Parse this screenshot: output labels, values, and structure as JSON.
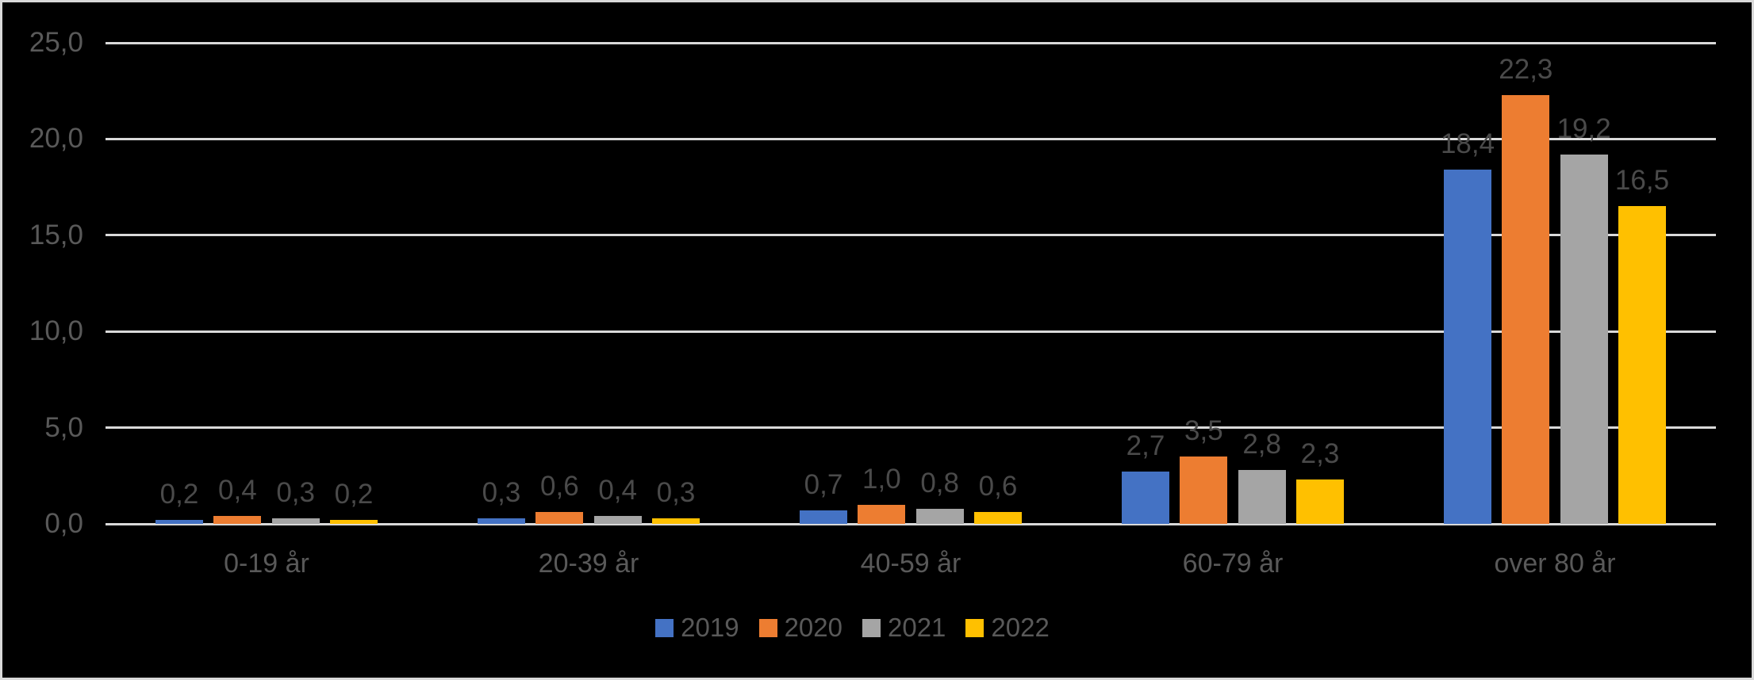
{
  "colors": {
    "background": "#000000",
    "frame_border": "#d9d9d9",
    "gridline": "#d9d9d9",
    "axis_text": "#595959",
    "data_label_text": "#4a4a4a"
  },
  "chart_data": {
    "type": "bar",
    "title": "",
    "xlabel": "",
    "ylabel": "",
    "grid": true,
    "legend_position": "bottom",
    "decimal_separator": ",",
    "categories": [
      "0-19 år",
      "20-39 år",
      "40-59 år",
      "60-79 år",
      "over 80 år"
    ],
    "series": [
      {
        "name": "2019",
        "color": "#4472C4",
        "values": [
          0.2,
          0.3,
          0.7,
          2.7,
          18.4
        ],
        "labels": [
          "0,2",
          "0,3",
          "0,7",
          "2,7",
          "18,4"
        ]
      },
      {
        "name": "2020",
        "color": "#ED7D31",
        "values": [
          0.4,
          0.6,
          1.0,
          3.5,
          22.3
        ],
        "labels": [
          "0,4",
          "0,6",
          "1,0",
          "3,5",
          "22,3"
        ]
      },
      {
        "name": "2021",
        "color": "#A5A5A5",
        "values": [
          0.3,
          0.4,
          0.8,
          2.8,
          19.2
        ],
        "labels": [
          "0,3",
          "0,4",
          "0,8",
          "2,8",
          "19,2"
        ]
      },
      {
        "name": "2022",
        "color": "#FFC000",
        "values": [
          0.2,
          0.3,
          0.6,
          2.3,
          16.5
        ],
        "labels": [
          "0,2",
          "0,3",
          "0,6",
          "2,3",
          "16,5"
        ]
      }
    ],
    "y_axis": {
      "min": 0,
      "max": 25,
      "step": 5,
      "tick_values": [
        0,
        5,
        10,
        15,
        20,
        25
      ],
      "tick_labels": [
        "0,0",
        "5,0",
        "10,0",
        "15,0",
        "20,0",
        "25,0"
      ]
    },
    "legend_entries": [
      "2019",
      "2020",
      "2021",
      "2022"
    ]
  }
}
